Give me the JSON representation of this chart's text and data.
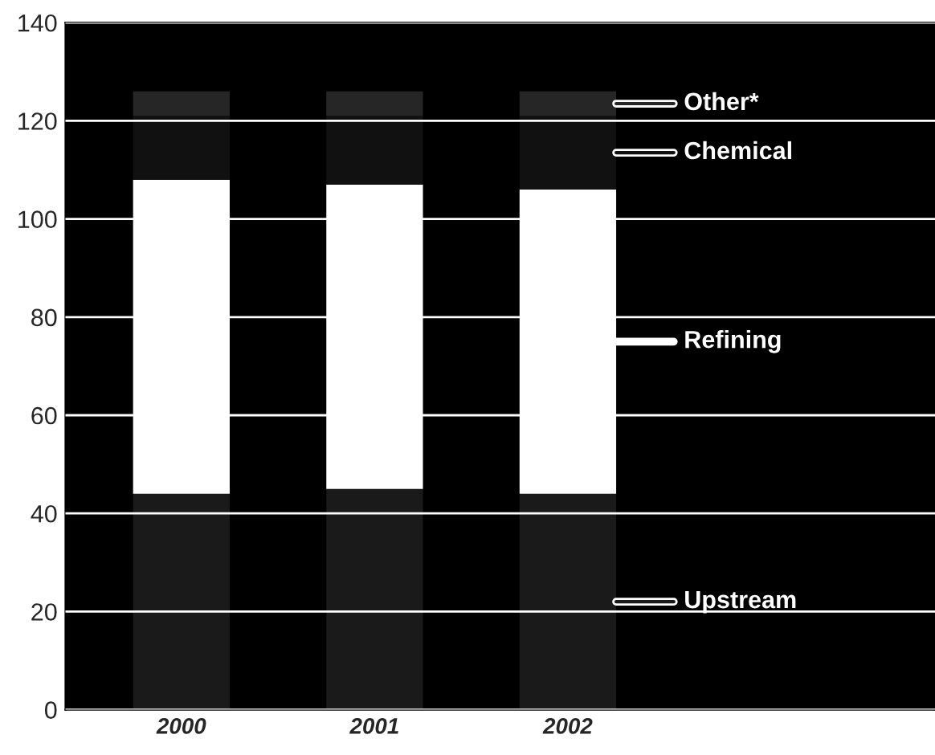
{
  "chart_data": {
    "type": "bar",
    "stacked": true,
    "categories": [
      "2000",
      "2001",
      "2002"
    ],
    "series": [
      {
        "name": "Upstream",
        "color": "#1a1a1a",
        "values": [
          44,
          45,
          44
        ]
      },
      {
        "name": "Refining",
        "color": "#ffffff",
        "values": [
          64,
          62,
          62
        ]
      },
      {
        "name": "Chemical",
        "color": "#111111",
        "values": [
          13,
          14,
          15
        ]
      },
      {
        "name": "Other*",
        "color": "#262626",
        "values": [
          5,
          5,
          5
        ]
      }
    ],
    "ylim": [
      0,
      140
    ],
    "yticks": [
      0,
      20,
      40,
      60,
      80,
      100,
      120,
      140
    ],
    "grid": "y",
    "legend": "right"
  }
}
